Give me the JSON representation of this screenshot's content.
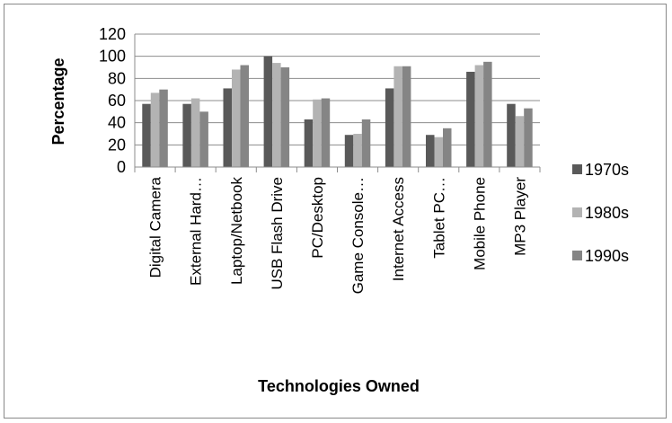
{
  "chart_data": {
    "type": "bar",
    "title": "",
    "xlabel": "Technologies Owned",
    "ylabel": "Percentage",
    "ylim": [
      0,
      120
    ],
    "yticks": [
      0,
      20,
      40,
      60,
      80,
      100,
      120
    ],
    "grid": true,
    "legend_position": "right",
    "categories": [
      "Digital Camera",
      "External Hard…",
      "Laptop/Netbook",
      "USB Flash Drive",
      "PC/Desktop",
      "Game Console…",
      "Internet Access",
      "Tablet PC…",
      "Mobile Phone",
      "MP3 Player"
    ],
    "series": [
      {
        "name": "1970s",
        "color": "#595959",
        "values": [
          57,
          57,
          71,
          100,
          43,
          29,
          71,
          29,
          86,
          57
        ]
      },
      {
        "name": "1980s",
        "color": "#b3b3b3",
        "values": [
          67,
          62,
          88,
          94,
          61,
          30,
          91,
          27,
          92,
          46
        ]
      },
      {
        "name": "1990s",
        "color": "#858585",
        "values": [
          70,
          50,
          92,
          90,
          62,
          43,
          91,
          35,
          95,
          53
        ]
      }
    ]
  }
}
